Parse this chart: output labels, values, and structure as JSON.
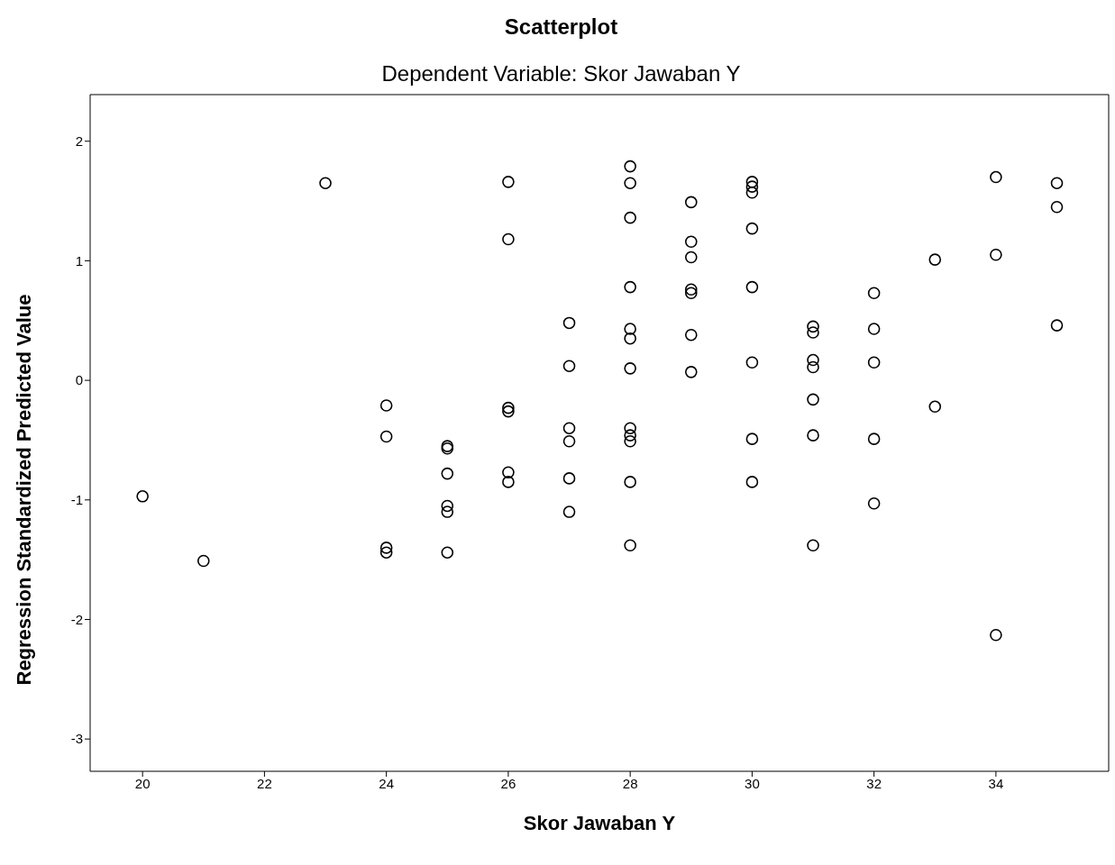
{
  "chart_data": {
    "type": "scatter",
    "title": "Scatterplot",
    "subtitle": "Dependent Variable: Skor Jawaban Y",
    "xlabel": "Skor Jawaban Y",
    "ylabel": "Regression Standardized Predicted Value",
    "xlim": [
      19.14,
      35.85
    ],
    "xticks": [
      20,
      22,
      24,
      26,
      28,
      30,
      32,
      34
    ],
    "ylim": [
      -3.27,
      2.39
    ],
    "yticks": [
      -3,
      -2,
      -1,
      0,
      1,
      2
    ],
    "grid": false,
    "legend": false,
    "marker": "circle",
    "series": [
      {
        "color": "#000000",
        "x": [
          20,
          21,
          23,
          24,
          24,
          24,
          24,
          25,
          25,
          25,
          25,
          25,
          25,
          26,
          26,
          26,
          26,
          26,
          26,
          27,
          27,
          27,
          27,
          27,
          27,
          28,
          28,
          28,
          28,
          28,
          28,
          28,
          28,
          28,
          28,
          28,
          28,
          29,
          29,
          29,
          29,
          29,
          29,
          29,
          30,
          30,
          30,
          30,
          30,
          30,
          30,
          30,
          31,
          31,
          31,
          31,
          31,
          31,
          31,
          32,
          32,
          32,
          32,
          32,
          33,
          33,
          34,
          34,
          34,
          35,
          35,
          35
        ],
        "values": [
          -0.97,
          -1.51,
          1.65,
          -0.21,
          -0.47,
          -1.4,
          -1.44,
          -0.55,
          -0.57,
          -0.78,
          -1.05,
          -1.1,
          -1.44,
          1.66,
          1.18,
          -0.23,
          -0.26,
          -0.77,
          -0.85,
          0.48,
          0.12,
          -0.4,
          -0.51,
          -0.82,
          -1.1,
          1.79,
          1.65,
          1.36,
          0.78,
          0.43,
          0.35,
          0.1,
          -0.4,
          -0.46,
          -0.51,
          -0.85,
          -1.38,
          1.49,
          1.16,
          1.03,
          0.76,
          0.73,
          0.38,
          0.07,
          1.66,
          1.62,
          1.57,
          1.27,
          0.78,
          0.15,
          -0.49,
          -0.85,
          0.45,
          0.4,
          0.17,
          0.11,
          -0.16,
          -0.46,
          -1.38,
          0.73,
          0.43,
          0.15,
          -0.49,
          -1.03,
          1.01,
          -0.22,
          1.7,
          1.05,
          -2.13,
          1.65,
          1.45,
          0.46
        ]
      }
    ]
  }
}
